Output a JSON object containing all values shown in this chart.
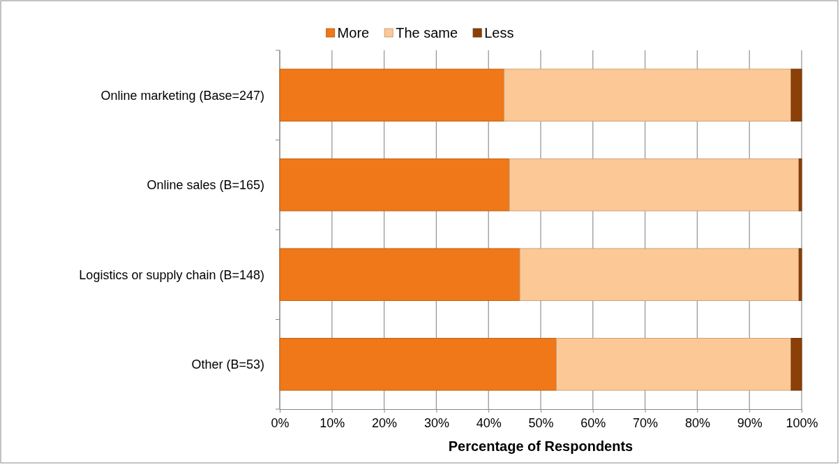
{
  "chart_data": {
    "type": "bar",
    "orientation": "horizontal",
    "stacked": true,
    "xlabel": "Percentage of Respondents",
    "categories": [
      "Online marketing (Base=247)",
      "Online sales (B=165)",
      "Logistics or supply chain (B=148)",
      "Other (B=53)"
    ],
    "series": [
      {
        "name": "More",
        "color": "#f07818",
        "values": [
          43,
          44,
          46,
          53
        ]
      },
      {
        "name": "The same",
        "color": "#fcc896",
        "values": [
          55,
          55.5,
          53.5,
          45
        ]
      },
      {
        "name": "Less",
        "color": "#8b4008",
        "values": [
          2,
          0.5,
          0.5,
          2
        ]
      }
    ],
    "xlim": [
      0,
      100
    ],
    "xticks": [
      {
        "value": 0,
        "label": "0%"
      },
      {
        "value": 10,
        "label": "10%"
      },
      {
        "value": 20,
        "label": "20%"
      },
      {
        "value": 30,
        "label": "30%"
      },
      {
        "value": 40,
        "label": "40%"
      },
      {
        "value": 50,
        "label": "50%"
      },
      {
        "value": 60,
        "label": "60%"
      },
      {
        "value": 70,
        "label": "70%"
      },
      {
        "value": 80,
        "label": "80%"
      },
      {
        "value": 90,
        "label": "90%"
      },
      {
        "value": 100,
        "label": "100%"
      }
    ],
    "grid": "x",
    "legend": "top"
  }
}
